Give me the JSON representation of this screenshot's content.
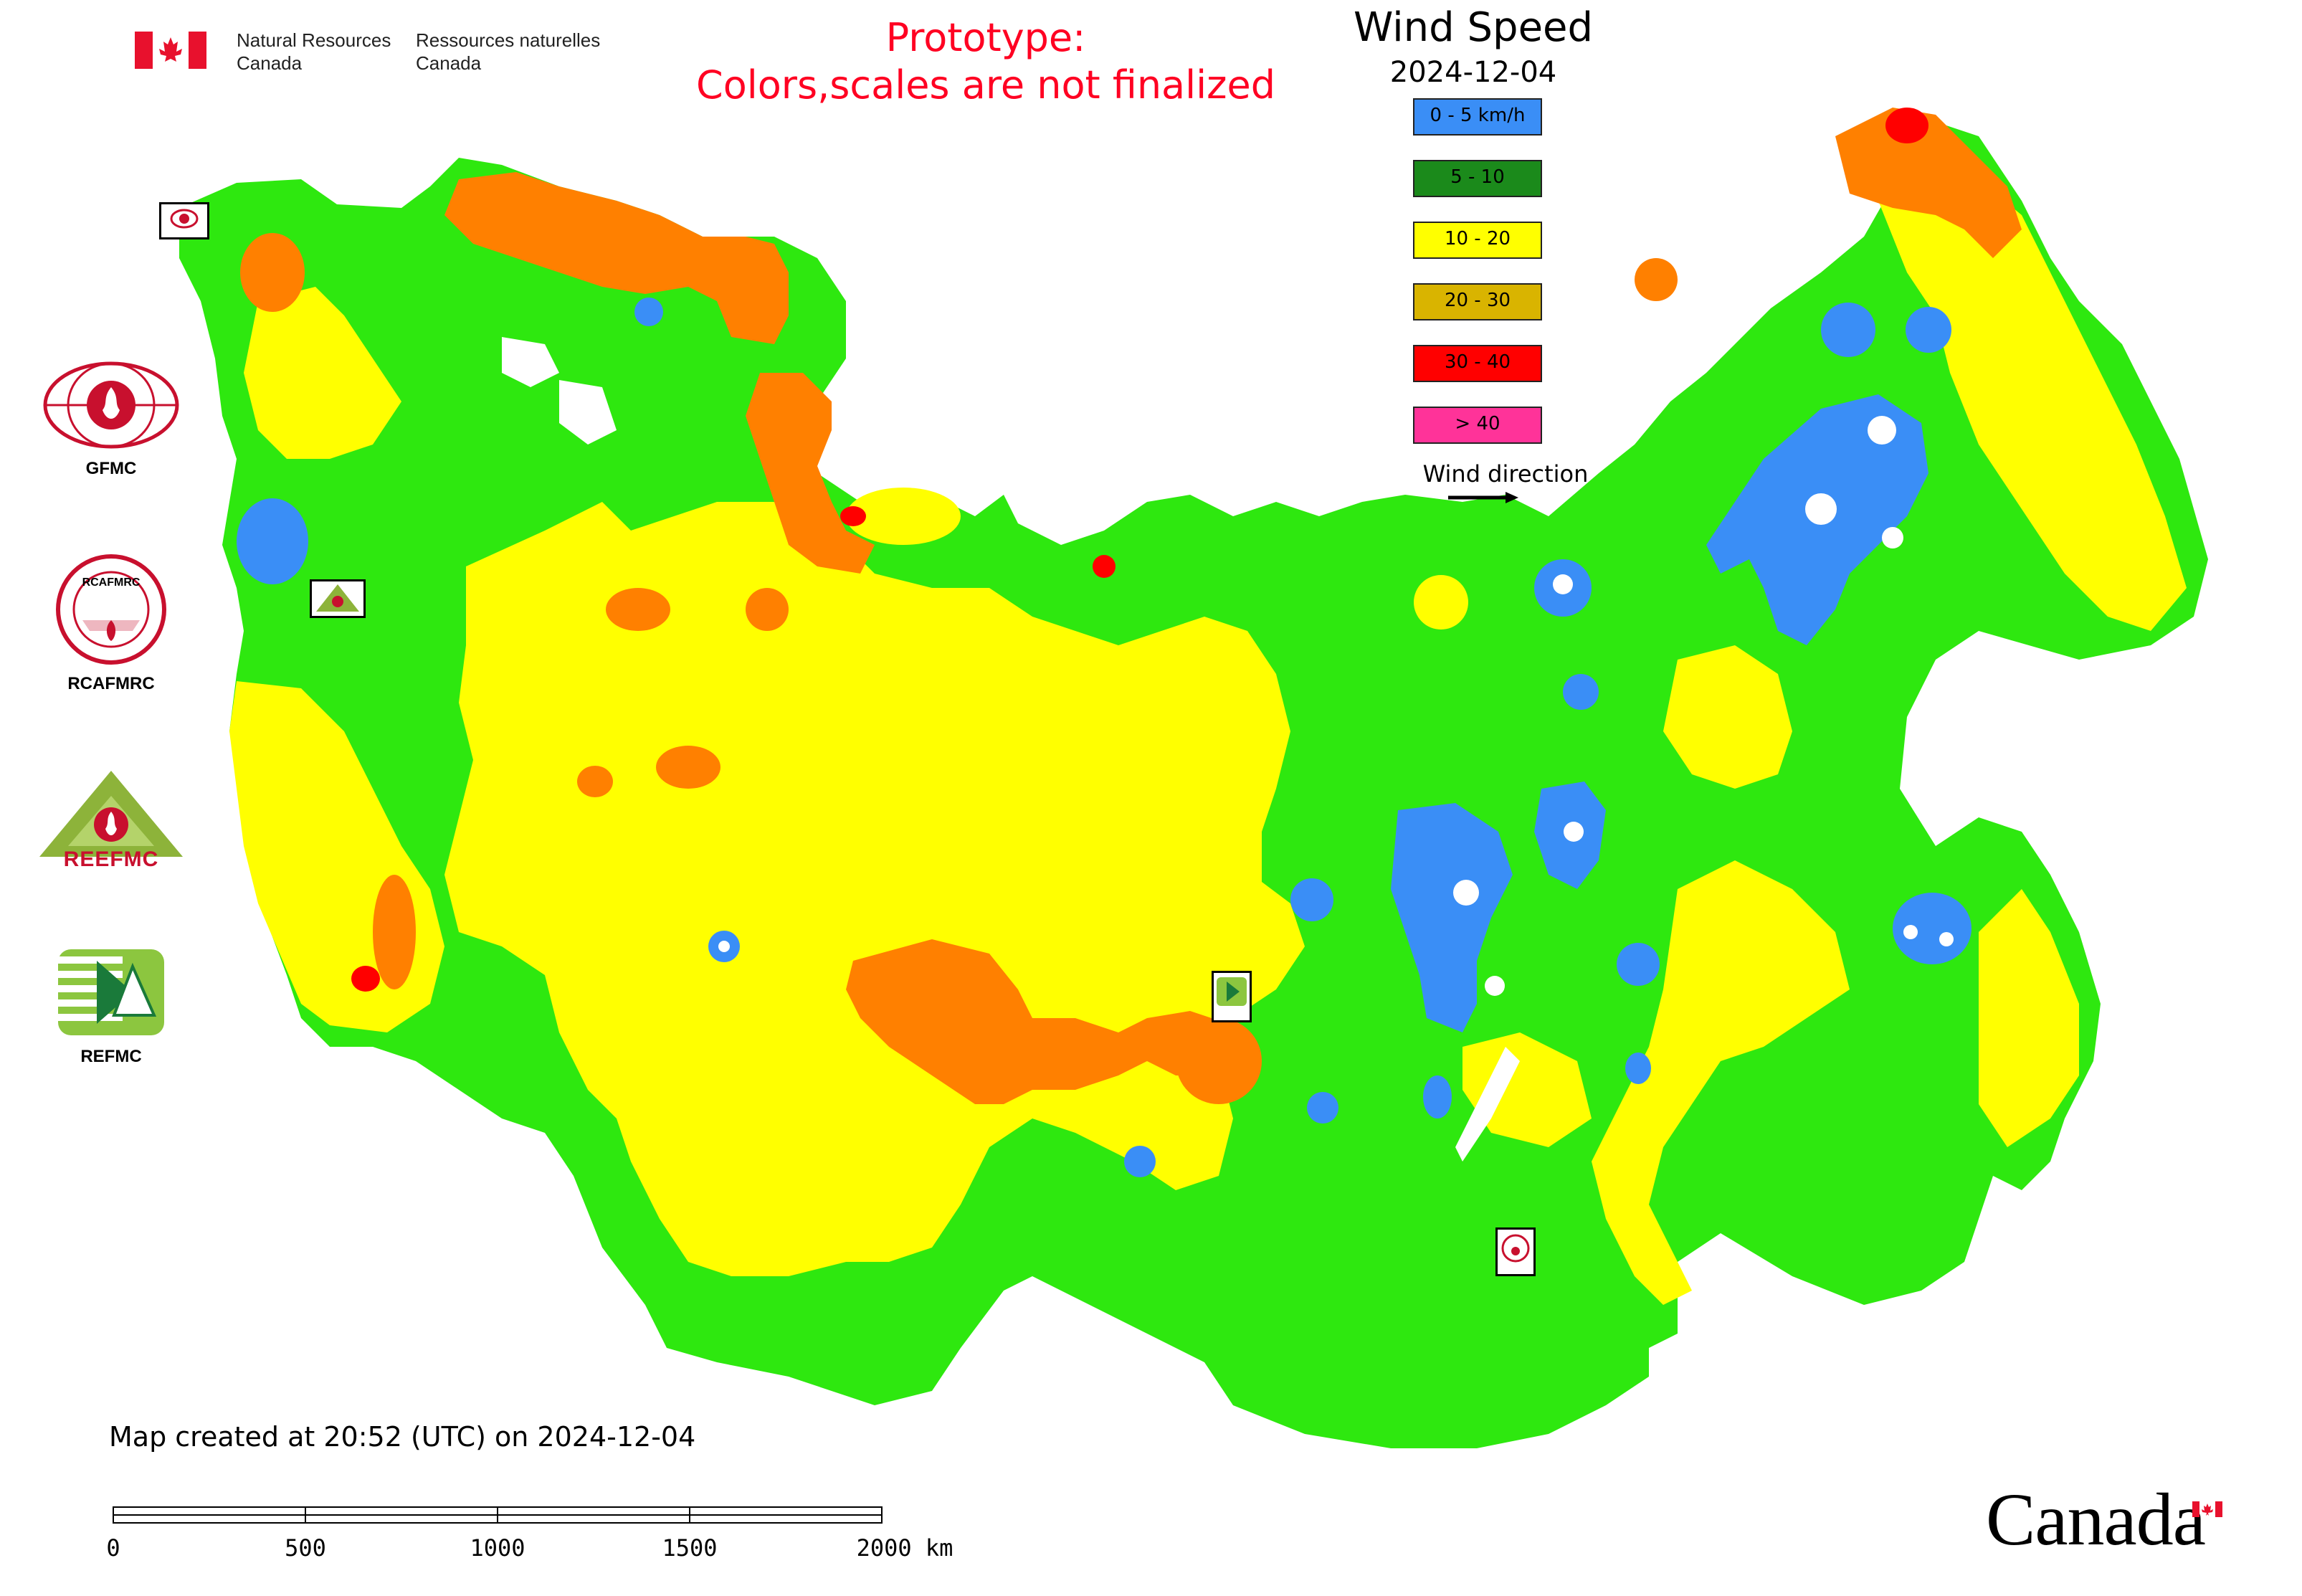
{
  "header": {
    "nrcan_en": "Natural Resources\nCanada",
    "nrcan_fr": "Ressources naturelles\nCanada",
    "prototype_line1": "Prototype:",
    "prototype_line2": "Colors,scales are not finalized"
  },
  "legend": {
    "title": "Wind Speed",
    "date": "2024-12-04",
    "classes": [
      {
        "label": "0 - 5 km/h",
        "color": "#3a8ef6"
      },
      {
        "label": "5 - 10",
        "color": "#1b8a1b"
      },
      {
        "label": "10 - 20",
        "color": "#ffff00"
      },
      {
        "label": "20 - 30",
        "color": "#d9b400"
      },
      {
        "label": "30 - 40",
        "color": "#ff0000"
      },
      {
        "label": "> 40",
        "color": "#ff3399"
      }
    ],
    "wind_direction_label": "Wind direction"
  },
  "map_colors": {
    "ocean": "#ffffff",
    "low": "#3a8ef6",
    "mid_low": "#2ee80f",
    "mid": "#ffff00",
    "high": "#ff8000",
    "very_high": "#ff0000"
  },
  "logos": {
    "gfmc": "GFMC",
    "rcafmrc": "RCAFMRC",
    "rcafmrc_inner": "RCAFMRC",
    "reefmc": "REEFMC",
    "refmc": "REFMC"
  },
  "footer": {
    "created": "Map created at 20:52 (UTC) on 2024-12-04",
    "scale_labels": [
      "0",
      "500",
      "1000",
      "1500",
      "2000 km"
    ],
    "canada_wordmark": "Canada"
  }
}
